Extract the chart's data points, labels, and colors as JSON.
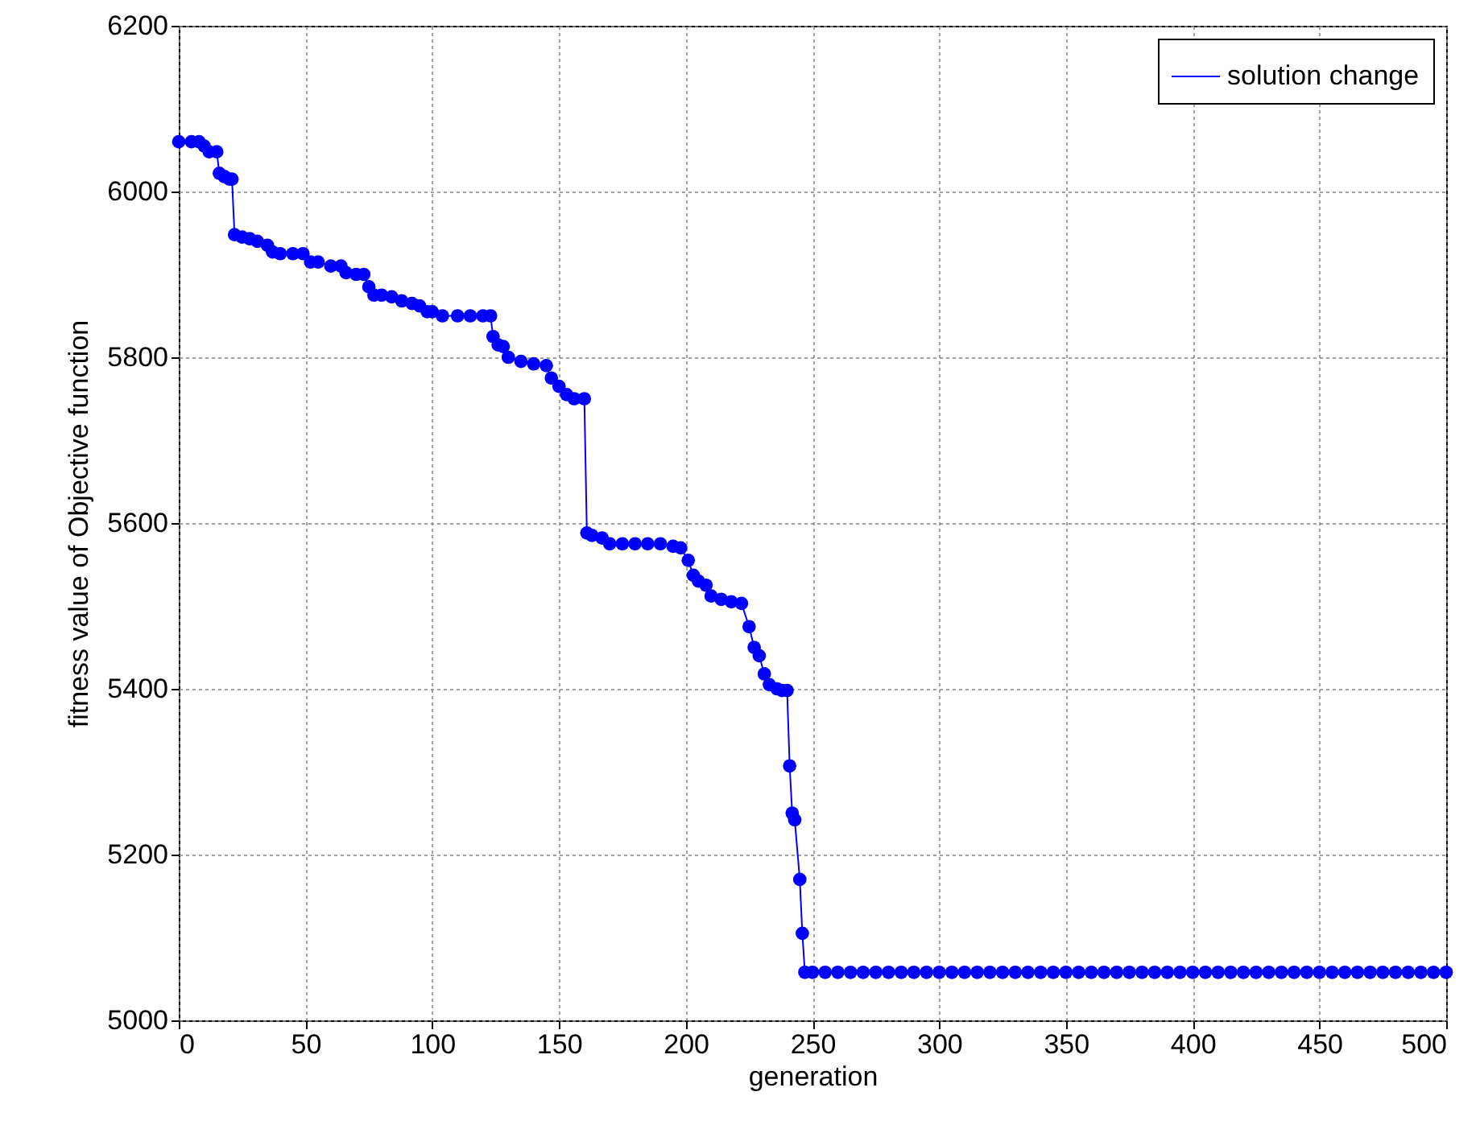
{
  "chart_data": {
    "type": "line",
    "xlabel": "generation",
    "ylabel": "fitness value of Objective function",
    "xlim": [
      0,
      500
    ],
    "ylim": [
      5000,
      6200
    ],
    "xticks": [
      0,
      50,
      100,
      150,
      200,
      250,
      300,
      350,
      400,
      450,
      500
    ],
    "yticks": [
      5000,
      5200,
      5400,
      5600,
      5800,
      6000,
      6200
    ],
    "grid": true,
    "legend": "top right",
    "marker": "circle",
    "line_style": "solid",
    "x": [
      0,
      5,
      8,
      10,
      12,
      15,
      16,
      18,
      20,
      21,
      22,
      25,
      28,
      31,
      35,
      37,
      40,
      45,
      49,
      52,
      55,
      60,
      64,
      66,
      70,
      73,
      75,
      77,
      80,
      84,
      88,
      92,
      95,
      98,
      100,
      104,
      110,
      115,
      120,
      123,
      124,
      126,
      128,
      130,
      135,
      140,
      145,
      147,
      150,
      153,
      156,
      160,
      161,
      163,
      167,
      170,
      175,
      180,
      185,
      190,
      195,
      198,
      201,
      203,
      205,
      208,
      210,
      214,
      218,
      222,
      225,
      227,
      229,
      231,
      233,
      236,
      238,
      240,
      241,
      242,
      243,
      245,
      246,
      247,
      250,
      255,
      260,
      265,
      270,
      275,
      280,
      285,
      290,
      295,
      300,
      305,
      310,
      315,
      320,
      325,
      330,
      335,
      340,
      345,
      350,
      355,
      360,
      365,
      370,
      375,
      380,
      385,
      390,
      395,
      400,
      405,
      410,
      415,
      420,
      425,
      430,
      435,
      440,
      445,
      450,
      455,
      460,
      465,
      470,
      475,
      480,
      485,
      490,
      495,
      500
    ],
    "series": [
      {
        "name": "solution change",
        "color": "#0000ff",
        "values": [
          6060,
          6060,
          6060,
          6055,
          6048,
          6048,
          6022,
          6018,
          6015,
          6015,
          5948,
          5945,
          5943,
          5940,
          5935,
          5927,
          5925,
          5925,
          5925,
          5915,
          5915,
          5910,
          5910,
          5902,
          5900,
          5900,
          5885,
          5875,
          5875,
          5873,
          5868,
          5865,
          5862,
          5855,
          5855,
          5850,
          5850,
          5850,
          5850,
          5850,
          5825,
          5815,
          5813,
          5800,
          5795,
          5792,
          5790,
          5775,
          5765,
          5755,
          5750,
          5750,
          5588,
          5585,
          5582,
          5575,
          5575,
          5575,
          5575,
          5575,
          5572,
          5570,
          5555,
          5537,
          5530,
          5525,
          5512,
          5508,
          5505,
          5503,
          5475,
          5450,
          5440,
          5418,
          5405,
          5400,
          5398,
          5398,
          5307,
          5250,
          5242,
          5170,
          5105,
          5058,
          5058,
          5058,
          5058,
          5058,
          5058,
          5058,
          5058,
          5058,
          5058,
          5058,
          5058,
          5058,
          5058,
          5058,
          5058,
          5058,
          5058,
          5058,
          5058,
          5058,
          5058,
          5058,
          5058,
          5058,
          5058,
          5058,
          5058,
          5058,
          5058,
          5058,
          5058,
          5058,
          5058,
          5058,
          5058,
          5058,
          5058,
          5058,
          5058,
          5058,
          5058,
          5058,
          5058,
          5058,
          5058,
          5058,
          5058,
          5058,
          5058,
          5058,
          5058
        ]
      }
    ]
  }
}
